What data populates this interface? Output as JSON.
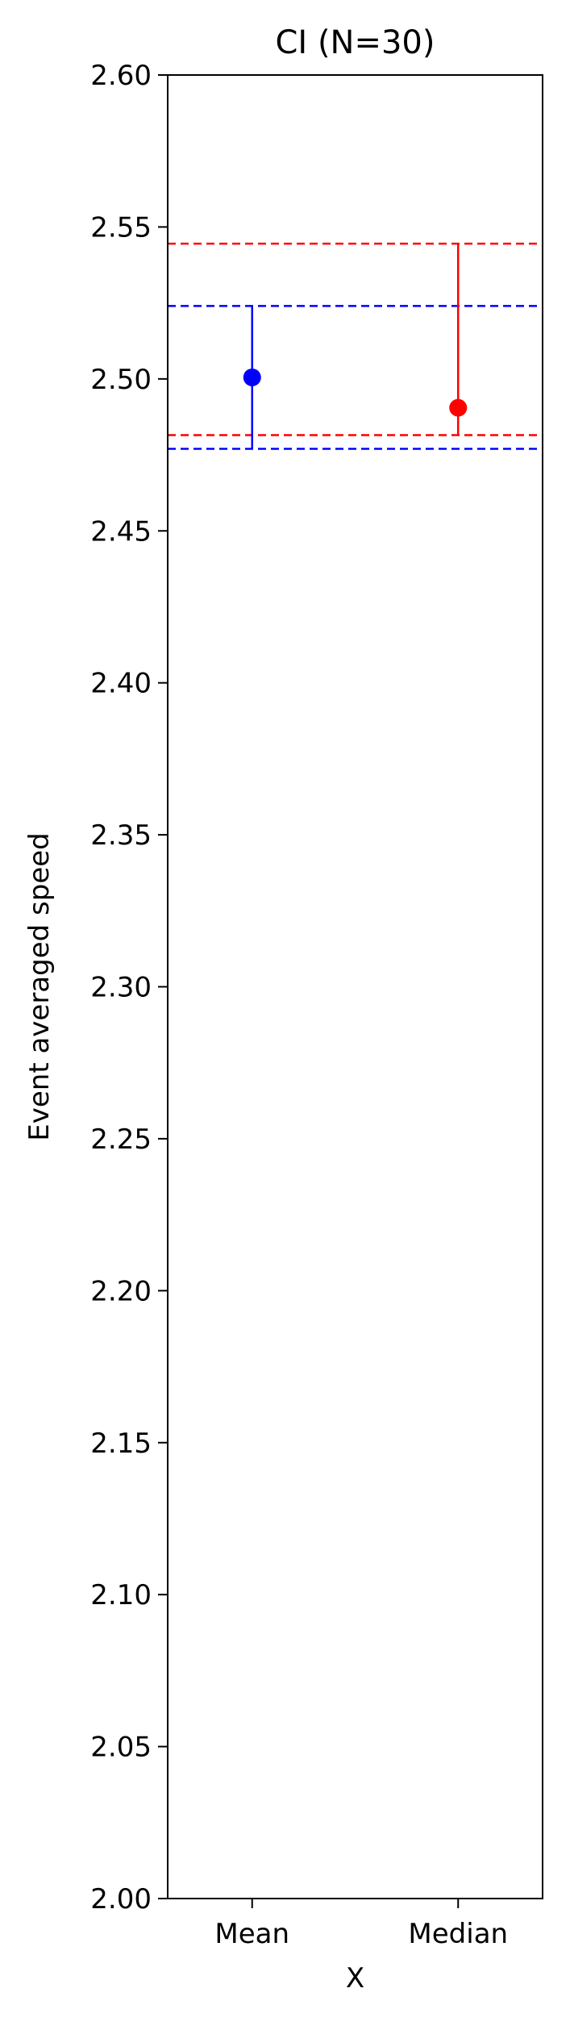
{
  "chart_data": {
    "type": "errorbar",
    "title": "CI (N=30)",
    "xlabel": "X",
    "ylabel": "Event averaged speed",
    "ylim": [
      2.0,
      2.6
    ],
    "yticks": [
      "2.00",
      "2.05",
      "2.10",
      "2.15",
      "2.20",
      "2.25",
      "2.30",
      "2.35",
      "2.40",
      "2.45",
      "2.50",
      "2.55",
      "2.60"
    ],
    "categories": [
      "Mean",
      "Median"
    ],
    "grid": false,
    "points": [
      {
        "category": "Mean",
        "value": 2.5005,
        "ci_low": 2.477,
        "ci_high": 2.524,
        "color": "#0000ff"
      },
      {
        "category": "Median",
        "value": 2.4905,
        "ci_low": 2.4815,
        "ci_high": 2.5445,
        "color": "#ff0000"
      }
    ],
    "reference_lines": [
      {
        "value": 2.5445,
        "color": "#ff0000",
        "style": "dashed"
      },
      {
        "value": 2.524,
        "color": "#0000ff",
        "style": "dashed"
      },
      {
        "value": 2.4815,
        "color": "#ff0000",
        "style": "dashed"
      },
      {
        "value": 2.477,
        "color": "#0000ff",
        "style": "dashed"
      }
    ]
  }
}
